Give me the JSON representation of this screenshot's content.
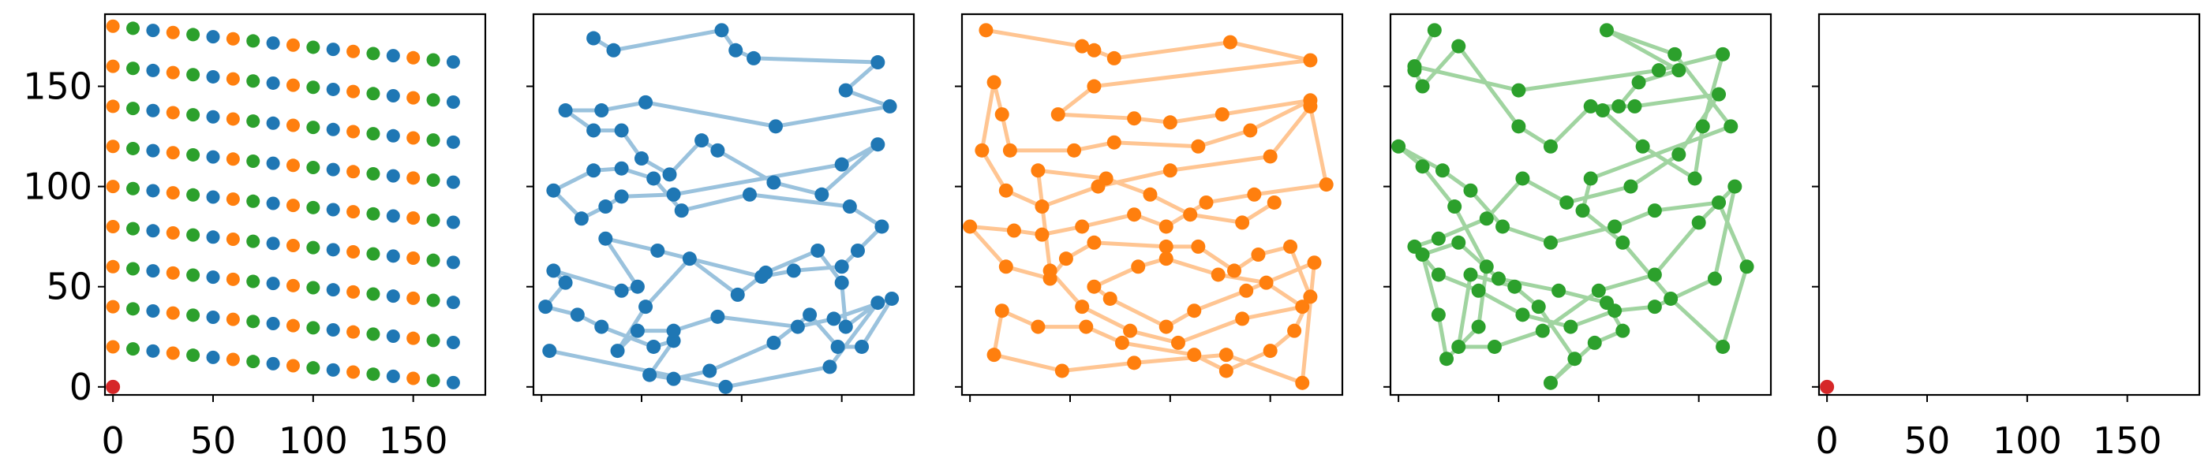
{
  "chart_data": {
    "type": "scatter",
    "layout": "1x5 small multiples, shared x and y axes",
    "xlim": [
      -4,
      186
    ],
    "ylim": [
      -4,
      186
    ],
    "x_ticks": [
      0,
      50,
      100,
      150
    ],
    "y_ticks": [
      0,
      50,
      100,
      150
    ],
    "grid": false,
    "legend": "none",
    "colors": {
      "blue": "#1f77b4",
      "orange": "#ff7f0e",
      "green": "#2ca02c",
      "red": "#d62728"
    },
    "panels": [
      {
        "kind": "grid-scatter",
        "description": "all points colored by group on a sheared grid",
        "series": [
          {
            "color": "blue",
            "x": [
              0,
              10,
              20,
              30,
              40,
              50,
              60,
              70,
              80,
              90,
              100,
              110,
              120,
              130,
              140,
              150,
              160,
              170,
              180
            ],
            "role": "groups"
          },
          {
            "color": "red",
            "points": [
              [
                0,
                0
              ]
            ]
          }
        ]
      },
      {
        "kind": "path",
        "series_color": "blue",
        "points": [
          [
            26,
            174
          ],
          [
            36,
            168
          ],
          [
            90,
            178
          ],
          [
            97,
            168
          ],
          [
            106,
            164
          ],
          [
            168,
            162
          ],
          [
            152,
            148
          ],
          [
            174,
            140
          ],
          [
            117,
            130
          ],
          [
            52,
            142
          ],
          [
            30,
            138
          ],
          [
            12,
            138
          ],
          [
            26,
            128
          ],
          [
            40,
            128
          ],
          [
            50,
            114
          ],
          [
            64,
            106
          ],
          [
            80,
            123
          ],
          [
            88,
            118
          ],
          [
            116,
            102
          ],
          [
            140,
            96
          ],
          [
            168,
            121
          ],
          [
            150,
            111
          ],
          [
            66,
            96
          ],
          [
            40,
            95
          ],
          [
            32,
            90
          ],
          [
            20,
            84
          ],
          [
            6,
            98
          ],
          [
            26,
            108
          ],
          [
            40,
            109
          ],
          [
            56,
            104
          ],
          [
            70,
            88
          ],
          [
            104,
            96
          ],
          [
            154,
            90
          ],
          [
            170,
            80
          ],
          [
            158,
            68
          ],
          [
            150,
            60
          ],
          [
            126,
            58
          ],
          [
            110,
            55
          ],
          [
            58,
            68
          ],
          [
            32,
            74
          ],
          [
            48,
            50
          ],
          [
            40,
            48
          ],
          [
            6,
            58
          ],
          [
            12,
            52
          ],
          [
            2,
            40
          ],
          [
            18,
            36
          ],
          [
            30,
            30
          ],
          [
            56,
            20
          ],
          [
            66,
            23
          ],
          [
            54,
            6
          ],
          [
            66,
            4
          ],
          [
            84,
            8
          ],
          [
            116,
            22
          ],
          [
            134,
            36
          ],
          [
            148,
            20
          ],
          [
            160,
            20
          ],
          [
            175,
            44
          ],
          [
            146,
            34
          ],
          [
            128,
            30
          ],
          [
            88,
            35
          ],
          [
            66,
            28
          ],
          [
            48,
            28
          ],
          [
            38,
            18
          ],
          [
            52,
            40
          ],
          [
            74,
            64
          ],
          [
            98,
            46
          ],
          [
            112,
            57
          ],
          [
            138,
            68
          ],
          [
            150,
            52
          ],
          [
            152,
            30
          ],
          [
            168,
            42
          ],
          [
            144,
            10
          ],
          [
            92,
            0
          ],
          [
            4,
            18
          ]
        ]
      },
      {
        "kind": "path",
        "series_color": "orange",
        "points": [
          [
            8,
            178
          ],
          [
            56,
            170
          ],
          [
            62,
            168
          ],
          [
            72,
            164
          ],
          [
            130,
            172
          ],
          [
            170,
            163
          ],
          [
            62,
            150
          ],
          [
            44,
            136
          ],
          [
            82,
            134
          ],
          [
            100,
            132
          ],
          [
            126,
            136
          ],
          [
            170,
            143
          ],
          [
            140,
            128
          ],
          [
            114,
            120
          ],
          [
            72,
            122
          ],
          [
            52,
            118
          ],
          [
            20,
            118
          ],
          [
            16,
            136
          ],
          [
            12,
            152
          ],
          [
            6,
            118
          ],
          [
            18,
            98
          ],
          [
            36,
            90
          ],
          [
            64,
            100
          ],
          [
            100,
            108
          ],
          [
            150,
            115
          ],
          [
            170,
            140
          ],
          [
            178,
            101
          ],
          [
            142,
            96
          ],
          [
            118,
            92
          ],
          [
            98,
            80
          ],
          [
            82,
            86
          ],
          [
            56,
            80
          ],
          [
            36,
            76
          ],
          [
            22,
            78
          ],
          [
            0,
            80
          ],
          [
            18,
            60
          ],
          [
            40,
            54
          ],
          [
            48,
            64
          ],
          [
            62,
            72
          ],
          [
            98,
            70
          ],
          [
            114,
            70
          ],
          [
            132,
            58
          ],
          [
            144,
            66
          ],
          [
            160,
            70
          ],
          [
            170,
            45
          ],
          [
            162,
            28
          ],
          [
            150,
            18
          ],
          [
            128,
            8
          ],
          [
            112,
            16
          ],
          [
            76,
            22
          ],
          [
            58,
            30
          ],
          [
            34,
            30
          ],
          [
            16,
            38
          ],
          [
            12,
            16
          ],
          [
            46,
            8
          ],
          [
            82,
            12
          ],
          [
            128,
            16
          ],
          [
            166,
            2
          ],
          [
            172,
            62
          ],
          [
            138,
            48
          ],
          [
            112,
            38
          ],
          [
            98,
            30
          ],
          [
            70,
            44
          ],
          [
            62,
            50
          ],
          [
            84,
            60
          ],
          [
            98,
            64
          ],
          [
            124,
            56
          ],
          [
            148,
            52
          ],
          [
            166,
            40
          ],
          [
            136,
            34
          ],
          [
            104,
            22
          ],
          [
            80,
            28
          ],
          [
            56,
            40
          ],
          [
            40,
            58
          ],
          [
            34,
            108
          ],
          [
            68,
            104
          ],
          [
            90,
            96
          ],
          [
            110,
            86
          ],
          [
            136,
            82
          ],
          [
            152,
            92
          ]
        ]
      },
      {
        "kind": "path",
        "series_color": "green",
        "points": [
          [
            18,
            178
          ],
          [
            8,
            160
          ],
          [
            60,
            148
          ],
          [
            130,
            158
          ],
          [
            162,
            166
          ],
          [
            152,
            130
          ],
          [
            148,
            104
          ],
          [
            122,
            120
          ],
          [
            102,
            138
          ],
          [
            110,
            140
          ],
          [
            120,
            152
          ],
          [
            140,
            158
          ],
          [
            104,
            178
          ],
          [
            138,
            166
          ],
          [
            166,
            130
          ],
          [
            96,
            104
          ],
          [
            92,
            88
          ],
          [
            112,
            72
          ],
          [
            136,
            44
          ],
          [
            162,
            20
          ],
          [
            174,
            60
          ],
          [
            160,
            92
          ],
          [
            128,
            88
          ],
          [
            108,
            80
          ],
          [
            76,
            72
          ],
          [
            52,
            80
          ],
          [
            36,
            98
          ],
          [
            22,
            108
          ],
          [
            0,
            120
          ],
          [
            12,
            110
          ],
          [
            28,
            90
          ],
          [
            44,
            60
          ],
          [
            40,
            30
          ],
          [
            24,
            14
          ],
          [
            20,
            36
          ],
          [
            12,
            66
          ],
          [
            30,
            72
          ],
          [
            50,
            54
          ],
          [
            80,
            48
          ],
          [
            104,
            42
          ],
          [
            112,
            28
          ],
          [
            98,
            22
          ],
          [
            76,
            2
          ],
          [
            88,
            14
          ],
          [
            70,
            40
          ],
          [
            58,
            50
          ],
          [
            36,
            56
          ],
          [
            30,
            20
          ],
          [
            48,
            20
          ],
          [
            72,
            28
          ],
          [
            100,
            48
          ],
          [
            128,
            56
          ],
          [
            150,
            82
          ],
          [
            168,
            100
          ],
          [
            158,
            54
          ],
          [
            128,
            40
          ],
          [
            108,
            38
          ],
          [
            86,
            30
          ],
          [
            62,
            36
          ],
          [
            40,
            48
          ],
          [
            20,
            56
          ],
          [
            8,
            70
          ],
          [
            20,
            74
          ],
          [
            44,
            84
          ],
          [
            62,
            104
          ],
          [
            84,
            92
          ],
          [
            116,
            100
          ],
          [
            140,
            116
          ],
          [
            160,
            146
          ],
          [
            118,
            140
          ],
          [
            96,
            140
          ],
          [
            76,
            120
          ],
          [
            60,
            130
          ],
          [
            30,
            170
          ],
          [
            12,
            150
          ],
          [
            8,
            158
          ]
        ]
      },
      {
        "kind": "single-point",
        "series_color": "red",
        "points": [
          [
            0,
            0
          ]
        ]
      }
    ]
  }
}
